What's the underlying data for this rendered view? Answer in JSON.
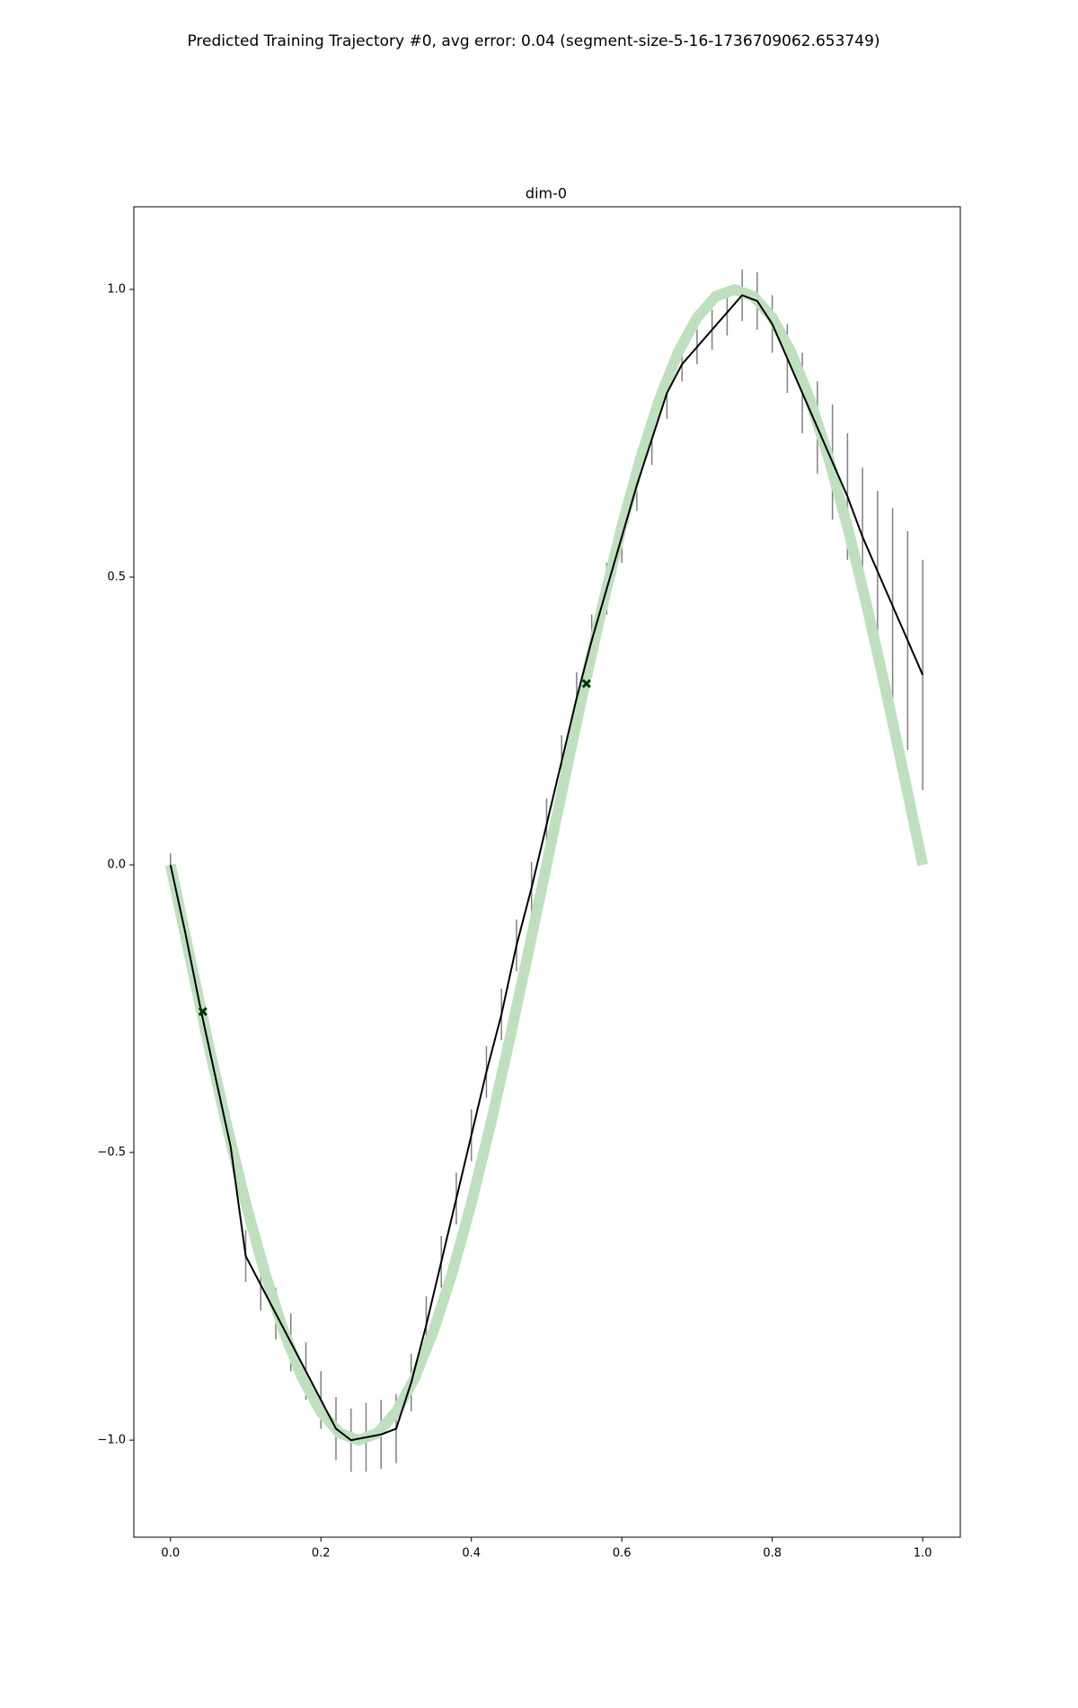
{
  "chart_data": {
    "type": "line",
    "title": "Predicted Training Trajectory #0, avg error: 0.04 (segment-size-5-16-1736709062.653749)",
    "subtitle": "dim-0",
    "xlim": [
      -0.0487,
      1.05
    ],
    "ylim": [
      -1.1686,
      1.1437
    ],
    "xticks": [
      {
        "value": 0,
        "label": "0.0"
      },
      {
        "value": 0.2,
        "label": "0.2"
      },
      {
        "value": 0.4,
        "label": "0.4"
      },
      {
        "value": 0.6,
        "label": "0.6"
      },
      {
        "value": 0.8,
        "label": "0.8"
      },
      {
        "value": 1,
        "label": "1.0"
      }
    ],
    "yticks": [
      {
        "value": -1,
        "label": "−1.0"
      },
      {
        "value": -0.5,
        "label": "−0.5"
      },
      {
        "value": 0,
        "label": "0.0"
      },
      {
        "value": 0.5,
        "label": "0.5"
      },
      {
        "value": 1,
        "label": "1.0"
      }
    ],
    "series": [
      {
        "color": "#bfe0bf",
        "x": [
          0,
          0.025,
          0.05,
          0.075,
          0.1,
          0.125,
          0.15,
          0.175,
          0.2,
          0.225,
          0.25,
          0.275,
          0.3,
          0.325,
          0.35,
          0.375,
          0.4,
          0.425,
          0.45,
          0.475,
          0.5,
          0.525,
          0.55,
          0.575,
          0.6,
          0.625,
          0.65,
          0.675,
          0.7,
          0.725,
          0.75,
          0.775,
          0.8,
          0.825,
          0.85,
          0.875,
          0.9,
          0.925,
          0.95,
          0.975,
          1
        ],
        "values": [
          0,
          -0.156,
          -0.309,
          -0.454,
          -0.588,
          -0.707,
          -0.809,
          -0.891,
          -0.951,
          -0.988,
          -1,
          -0.988,
          -0.951,
          -0.891,
          -0.809,
          -0.707,
          -0.588,
          -0.454,
          -0.309,
          -0.156,
          0,
          0.156,
          0.309,
          0.454,
          0.588,
          0.707,
          0.809,
          0.891,
          0.951,
          0.988,
          1,
          0.988,
          0.951,
          0.891,
          0.809,
          0.707,
          0.588,
          0.454,
          0.309,
          0.156,
          0
        ]
      },
      {
        "color": "#000000",
        "error_color": "#808080",
        "x": [
          0,
          0.02,
          0.04,
          0.06,
          0.08,
          0.1,
          0.12,
          0.14,
          0.16,
          0.18,
          0.2,
          0.22,
          0.24,
          0.26,
          0.28,
          0.3,
          0.32,
          0.34,
          0.36,
          0.38,
          0.4,
          0.42,
          0.44,
          0.46,
          0.48,
          0.5,
          0.52,
          0.54,
          0.56,
          0.58,
          0.6,
          0.62,
          0.64,
          0.66,
          0.68,
          0.7,
          0.72,
          0.74,
          0.76,
          0.78,
          0.8,
          0.82,
          0.84,
          0.86,
          0.88,
          0.9,
          0.92,
          0.94,
          0.96,
          0.98,
          1
        ],
        "values": [
          0,
          -0.12,
          -0.25,
          -0.37,
          -0.49,
          -0.68,
          -0.73,
          -0.78,
          -0.83,
          -0.88,
          -0.93,
          -0.98,
          -1,
          -0.995,
          -0.99,
          -0.98,
          -0.9,
          -0.8,
          -0.69,
          -0.58,
          -0.47,
          -0.36,
          -0.26,
          -0.14,
          -0.04,
          0.07,
          0.18,
          0.29,
          0.39,
          0.48,
          0.57,
          0.66,
          0.74,
          0.82,
          0.87,
          0.9,
          0.93,
          0.96,
          0.99,
          0.98,
          0.94,
          0.88,
          0.82,
          0.76,
          0.7,
          0.64,
          0.57,
          0.51,
          0.45,
          0.39,
          0.33
        ],
        "errors": [
          0.02,
          0.02,
          0.02,
          0.02,
          0.02,
          0.045,
          0.045,
          0.045,
          0.05,
          0.05,
          0.05,
          0.055,
          0.055,
          0.06,
          0.06,
          0.06,
          0.05,
          0.05,
          0.045,
          0.045,
          0.045,
          0.045,
          0.045,
          0.045,
          0.045,
          0.045,
          0.045,
          0.045,
          0.045,
          0.045,
          0.045,
          0.045,
          0.045,
          0.045,
          0.03,
          0.03,
          0.035,
          0.04,
          0.045,
          0.05,
          0.05,
          0.06,
          0.07,
          0.08,
          0.1,
          0.11,
          0.12,
          0.14,
          0.17,
          0.19,
          0.2
        ]
      }
    ],
    "markers": {
      "color": "#003300",
      "x": [
        0.043,
        0.553
      ],
      "values": [
        -0.255,
        0.315
      ]
    }
  }
}
